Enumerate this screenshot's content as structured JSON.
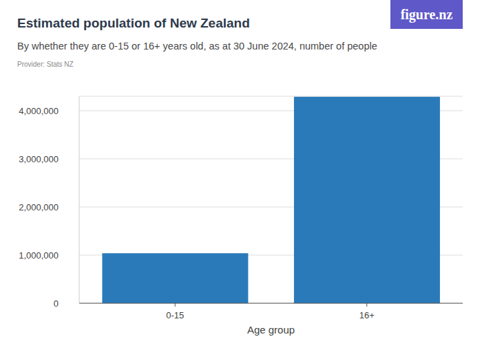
{
  "chart_data": {
    "type": "bar",
    "title": "Estimated population of New Zealand",
    "subtitle": "By whether they are 0-15 or 16+ years old, as at 30 June 2024, number of people",
    "source": "Provider: Stats NZ",
    "logo": "figure.nz",
    "x_label": "Age group",
    "categories": [
      "0-15",
      "16+"
    ],
    "values": [
      1040000,
      4290000
    ],
    "color": "#2a7ab9",
    "ylim": [
      0,
      4300000
    ],
    "yticks": [
      0,
      {
        "value": 1000000,
        "label": "1,000,000"
      },
      {
        "value": 2000000,
        "label": "2,000,000"
      },
      {
        "value": 3000000,
        "label": "3,000,000"
      },
      {
        "value": 4000000,
        "label": "4,000,000"
      }
    ],
    "grid": true
  }
}
